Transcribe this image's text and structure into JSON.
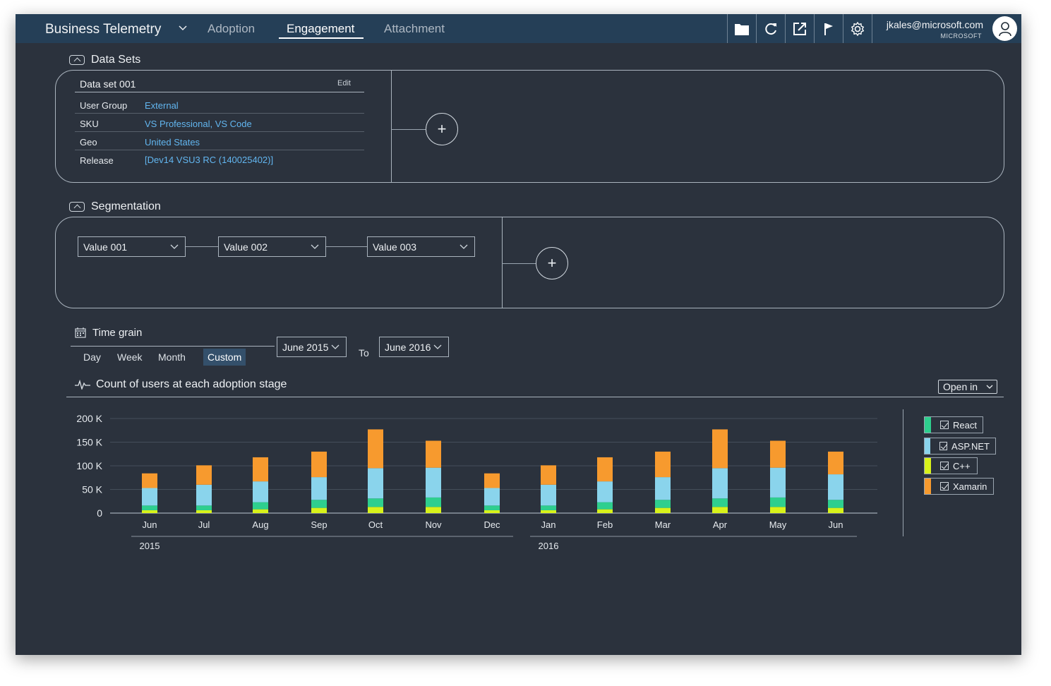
{
  "topbar": {
    "brand": "Business Telemetry",
    "tabs": [
      {
        "label": "Adoption",
        "active": false
      },
      {
        "label": "Engagement",
        "active": true
      },
      {
        "label": "Attachment",
        "active": false
      }
    ],
    "icons": [
      "folder-icon",
      "refresh-icon",
      "share-icon",
      "flag-icon",
      "gear-icon"
    ],
    "user_email": "jkales@microsoft.com",
    "user_org": "MICROSOFT"
  },
  "datasets": {
    "header": "Data Sets",
    "card": {
      "title": "Data set 001",
      "edit_label": "Edit",
      "rows": [
        {
          "key": "User Group",
          "value": "External"
        },
        {
          "key": "SKU",
          "value": "VS Professional, VS Code"
        },
        {
          "key": "Geo",
          "value": "United States"
        },
        {
          "key": "Release",
          "value": "[Dev14 VSU3 RC (140025402)]"
        }
      ]
    },
    "add_label": "+"
  },
  "segmentation": {
    "header": "Segmentation",
    "values": [
      "Value 001",
      "Value 002",
      "Value 003"
    ],
    "add_label": "+"
  },
  "timegrain": {
    "header": "Time grain",
    "options": [
      "Day",
      "Week",
      "Month",
      "Custom"
    ],
    "selected": "Custom",
    "from": "June 2015",
    "to_label": "To",
    "to": "June 2016"
  },
  "chart": {
    "open_in_label": "Open in"
  },
  "colors": {
    "background": "#2b323d",
    "topbar": "#253f57",
    "link": "#62b6f0",
    "react": "#2ecf8e",
    "aspnet": "#8ad4ec",
    "cpp": "#d8f21a",
    "xamarin": "#f79a2e"
  },
  "chart_data": {
    "type": "bar",
    "stacked": true,
    "title": "Count of users at each adoption stage",
    "xlabel": "",
    "ylabel": "",
    "categories": [
      "Jun",
      "Jul",
      "Aug",
      "Sep",
      "Oct",
      "Nov",
      "Dec",
      "Jan",
      "Feb",
      "Mar",
      "Apr",
      "May",
      "Jun"
    ],
    "year_groups": [
      {
        "label": "2015",
        "from": 0,
        "to": 6
      },
      {
        "label": "2016",
        "from": 7,
        "to": 12
      }
    ],
    "yticks": [
      "0",
      "50 K",
      "100 K",
      "150 K",
      "200 K"
    ],
    "ytick_values": [
      0,
      50000,
      100000,
      150000,
      200000
    ],
    "ylim": [
      0,
      200000
    ],
    "grid": true,
    "legend_position": "right",
    "series": [
      {
        "name": "C++",
        "color": "#d8f21a",
        "values": [
          6000,
          6000,
          8000,
          11000,
          13000,
          13000,
          6000,
          6000,
          8000,
          11000,
          13000,
          13000,
          11000
        ]
      },
      {
        "name": "React",
        "color": "#2ecf8e",
        "values": [
          10000,
          10000,
          15000,
          17000,
          18000,
          20000,
          10000,
          10000,
          15000,
          17000,
          18000,
          20000,
          17000
        ]
      },
      {
        "name": "ASP.NET",
        "color": "#8ad4ec",
        "values": [
          37000,
          44000,
          44000,
          48000,
          64000,
          63000,
          37000,
          44000,
          44000,
          48000,
          64000,
          63000,
          54000
        ]
      },
      {
        "name": "Xamarin",
        "color": "#f79a2e",
        "values": [
          31000,
          41000,
          51000,
          54000,
          82000,
          57000,
          31000,
          41000,
          51000,
          54000,
          82000,
          57000,
          48000
        ]
      }
    ],
    "legend_order": [
      "React",
      "ASP.NET",
      "C++",
      "Xamarin"
    ]
  }
}
